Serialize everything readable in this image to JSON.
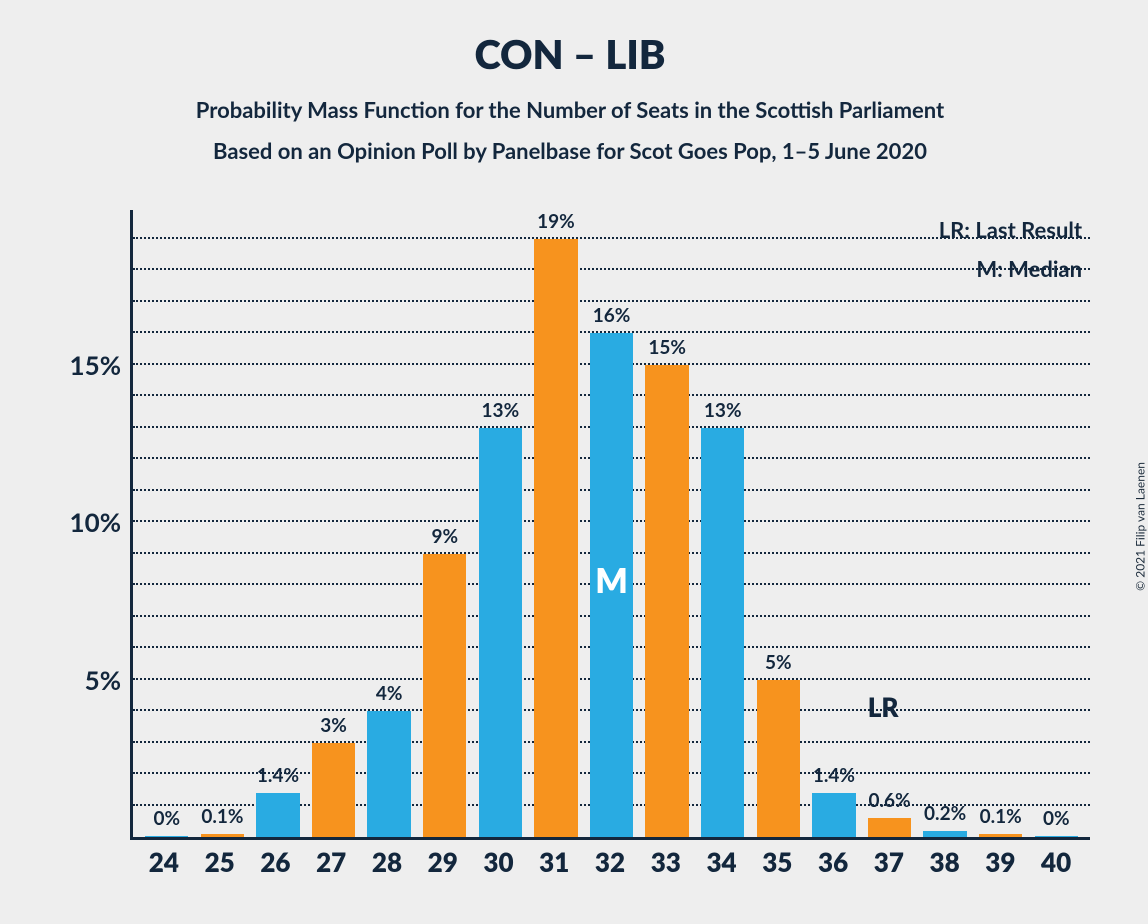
{
  "copyright": "© 2021 Filip van Laenen",
  "title": "CON – LIB",
  "subtitle1": "Probability Mass Function for the Number of Seats in the Scottish Parliament",
  "subtitle2": "Based on an Opinion Poll by Panelbase for Scot Goes Pop, 1–5 June 2020",
  "legend": {
    "lr": "LR: Last Result",
    "m": "M: Median"
  },
  "lr_label": "LR",
  "median_label": "M",
  "chart": {
    "type": "bar",
    "background_color": "#eeeeee",
    "axis_color": "#13273d",
    "grid_color": "#13273d",
    "ymax": 20,
    "ylabeled_ticks": [
      5,
      10,
      15
    ],
    "yminor_step": 1,
    "colors": {
      "blue": "#29abe2",
      "orange": "#f7931e"
    },
    "median_index": 8,
    "lr_index": 12,
    "label_fontsize": 19,
    "tick_fontsize": 26,
    "bars": [
      {
        "x": 24,
        "value": 0,
        "label": "0%",
        "color": "blue"
      },
      {
        "x": 25,
        "value": 0.1,
        "label": "0.1%",
        "color": "orange"
      },
      {
        "x": 26,
        "value": 1.4,
        "label": "1.4%",
        "color": "blue"
      },
      {
        "x": 27,
        "value": 3,
        "label": "3%",
        "color": "orange"
      },
      {
        "x": 28,
        "value": 4,
        "label": "4%",
        "color": "blue"
      },
      {
        "x": 29,
        "value": 9,
        "label": "9%",
        "color": "orange"
      },
      {
        "x": 30,
        "value": 13,
        "label": "13%",
        "color": "blue"
      },
      {
        "x": 31,
        "value": 19,
        "label": "19%",
        "color": "orange"
      },
      {
        "x": 32,
        "value": 16,
        "label": "16%",
        "color": "blue"
      },
      {
        "x": 33,
        "value": 15,
        "label": "15%",
        "color": "orange"
      },
      {
        "x": 34,
        "value": 13,
        "label": "13%",
        "color": "blue"
      },
      {
        "x": 35,
        "value": 5,
        "label": "5%",
        "color": "orange"
      },
      {
        "x": 36,
        "value": 1.4,
        "label": "1.4%",
        "color": "blue"
      },
      {
        "x": 37,
        "value": 0.6,
        "label": "0.6%",
        "color": "orange"
      },
      {
        "x": 38,
        "value": 0.2,
        "label": "0.2%",
        "color": "blue"
      },
      {
        "x": 39,
        "value": 0.1,
        "label": "0.1%",
        "color": "orange"
      },
      {
        "x": 40,
        "value": 0,
        "label": "0%",
        "color": "blue"
      }
    ]
  }
}
